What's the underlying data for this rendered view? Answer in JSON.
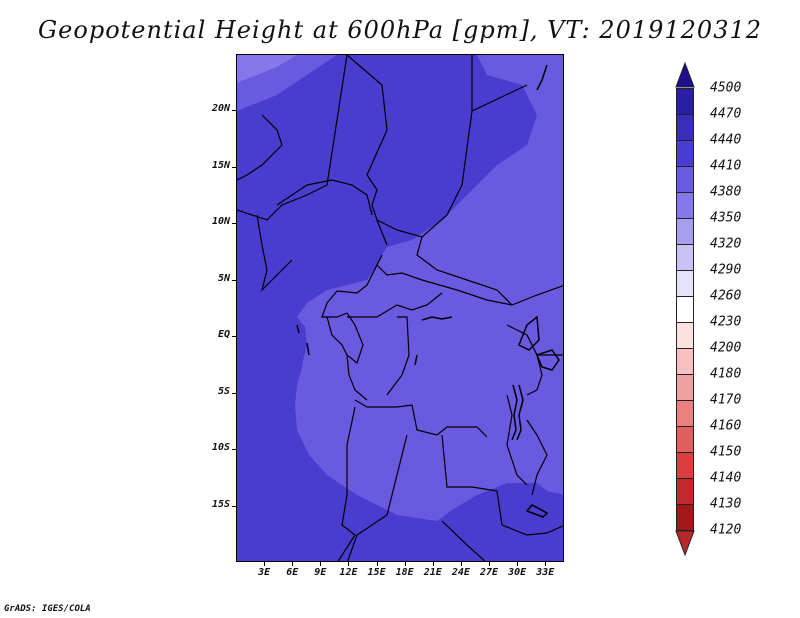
{
  "title": "Geopotential Height at 600hPa [gpm], VT: 2019120312",
  "credit": "GrADS: IGES/COLA",
  "lat_labels": [
    "20N",
    "15N",
    "10N",
    "5N",
    "EQ",
    "5S",
    "10S",
    "15S"
  ],
  "lat_values": [
    20,
    15,
    10,
    5,
    0,
    -5,
    -10,
    -15
  ],
  "lon_labels": [
    "3E",
    "6E",
    "9E",
    "12E",
    "15E",
    "18E",
    "21E",
    "24E",
    "27E",
    "30E",
    "33E"
  ],
  "lon_values": [
    3,
    6,
    9,
    12,
    15,
    18,
    21,
    24,
    27,
    30,
    33
  ],
  "map_extent": {
    "lon_min": 0,
    "lon_max": 35,
    "lat_min": -20,
    "lat_max": 25
  },
  "colorbar": {
    "levels": [
      "4500",
      "4470",
      "4440",
      "4410",
      "4380",
      "4350",
      "4320",
      "4290",
      "4260",
      "4230",
      "4200",
      "4180",
      "4170",
      "4160",
      "4150",
      "4140",
      "4130",
      "4120"
    ],
    "colors": [
      "#1e0f8c",
      "#2a1fa3",
      "#3a2db8",
      "#4a3ccf",
      "#6a5ae0",
      "#8677ea",
      "#a79ef0",
      "#c8c2f6",
      "#e4e1fb",
      "#ffffff",
      "#fde0e0",
      "#f8c0c0",
      "#f0a0a0",
      "#e88080",
      "#e06060",
      "#d84040",
      "#c02a2a",
      "#a01818",
      "#b82828"
    ]
  },
  "field_colors": {
    "c4410": "#4a3ccf",
    "c4380": "#6a5ae0",
    "c4350": "#8677ea"
  }
}
